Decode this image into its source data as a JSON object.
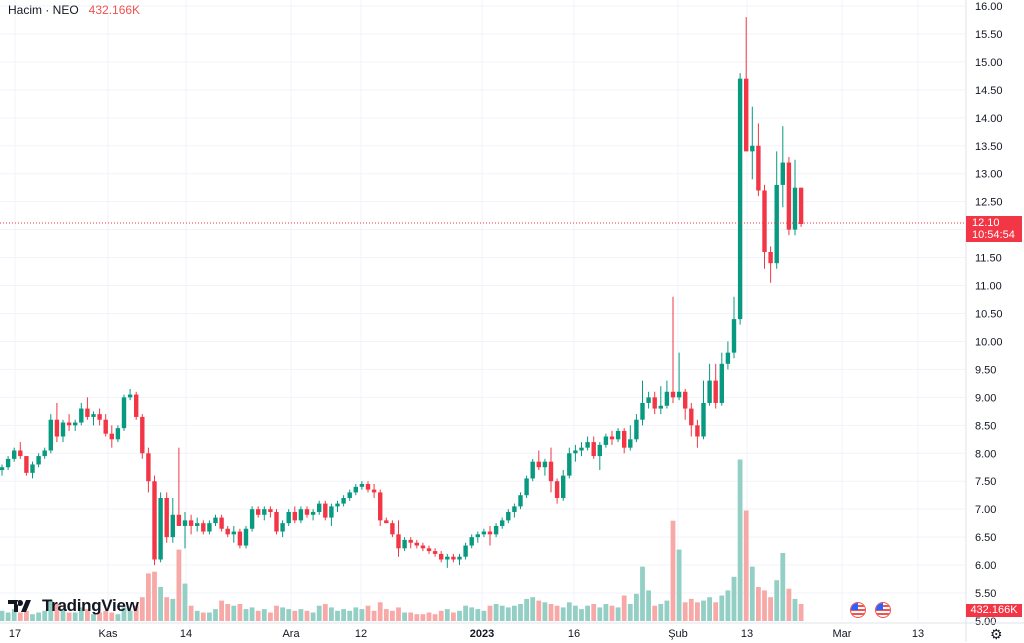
{
  "legend": {
    "symbol": "Hacim · NEO",
    "volume": "432.166K"
  },
  "price_tag": {
    "price": "12.10",
    "countdown": "10:54:54"
  },
  "volume_tag": "432.166K",
  "brand": {
    "name": "TradingView"
  },
  "colors": {
    "up": "#089981",
    "down": "#f23645",
    "up_volume": "#93cfc5",
    "down_volume": "#f7a9a7",
    "grid": "#f0f3fa"
  },
  "chart_data": {
    "type": "candlestick",
    "x_labels": [
      "17",
      "Kas",
      "14",
      "Ara",
      "12",
      "2023",
      "16",
      "Şub",
      "13",
      "Mar",
      "13"
    ],
    "y_ticks": [
      "5.00",
      "5.50",
      "6.00",
      "6.50",
      "7.00",
      "7.50",
      "8.00",
      "8.50",
      "9.00",
      "9.50",
      "10.00",
      "10.50",
      "11.00",
      "11.50",
      "12.00",
      "12.50",
      "13.00",
      "13.50",
      "14.00",
      "14.50",
      "15.00",
      "15.50",
      "16.00"
    ],
    "ylim": [
      5.0,
      16.0
    ],
    "last_price": 12.1,
    "candles": [
      [
        7.7,
        7.8,
        7.6,
        7.75,
        0.06
      ],
      [
        7.75,
        7.95,
        7.7,
        7.9,
        0.05
      ],
      [
        7.9,
        8.1,
        7.85,
        8.05,
        0.07
      ],
      [
        8.05,
        8.2,
        7.9,
        7.95,
        0.05
      ],
      [
        7.95,
        7.95,
        7.6,
        7.65,
        0.06
      ],
      [
        7.65,
        7.85,
        7.55,
        7.8,
        0.04
      ],
      [
        7.8,
        8.0,
        7.75,
        7.95,
        0.05
      ],
      [
        7.95,
        8.1,
        7.9,
        8.05,
        0.06
      ],
      [
        8.05,
        8.7,
        8.0,
        8.6,
        0.12
      ],
      [
        8.6,
        8.9,
        8.2,
        8.3,
        0.1
      ],
      [
        8.3,
        8.6,
        8.2,
        8.55,
        0.07
      ],
      [
        8.55,
        8.7,
        8.4,
        8.5,
        0.05
      ],
      [
        8.5,
        8.6,
        8.4,
        8.55,
        0.05
      ],
      [
        8.55,
        8.9,
        8.5,
        8.8,
        0.08
      ],
      [
        8.8,
        9.0,
        8.6,
        8.65,
        0.07
      ],
      [
        8.65,
        8.75,
        8.5,
        8.7,
        0.04
      ],
      [
        8.7,
        8.8,
        8.5,
        8.6,
        0.05
      ],
      [
        8.6,
        8.7,
        8.3,
        8.35,
        0.06
      ],
      [
        8.35,
        8.5,
        8.1,
        8.25,
        0.05
      ],
      [
        8.25,
        8.5,
        8.2,
        8.45,
        0.04
      ],
      [
        8.45,
        9.05,
        8.4,
        9.0,
        0.08
      ],
      [
        9.0,
        9.15,
        8.95,
        9.05,
        0.06
      ],
      [
        9.05,
        9.1,
        8.6,
        8.65,
        0.09
      ],
      [
        8.65,
        8.7,
        7.9,
        8.0,
        0.14
      ],
      [
        8.0,
        8.1,
        7.3,
        7.5,
        0.28
      ],
      [
        7.5,
        7.6,
        6.0,
        6.1,
        0.29
      ],
      [
        6.1,
        7.3,
        6.05,
        7.2,
        0.2
      ],
      [
        7.2,
        7.3,
        6.4,
        6.5,
        0.14
      ],
      [
        6.5,
        7.2,
        6.4,
        6.9,
        0.13
      ],
      [
        6.9,
        8.1,
        6.7,
        6.7,
        0.42
      ],
      [
        6.7,
        6.95,
        6.3,
        6.8,
        0.22
      ],
      [
        6.8,
        6.9,
        6.55,
        6.7,
        0.09
      ],
      [
        6.7,
        6.85,
        6.6,
        6.75,
        0.06
      ],
      [
        6.75,
        6.8,
        6.55,
        6.6,
        0.05
      ],
      [
        6.6,
        6.8,
        6.55,
        6.75,
        0.05
      ],
      [
        6.75,
        6.9,
        6.7,
        6.85,
        0.07
      ],
      [
        6.85,
        6.9,
        6.6,
        6.65,
        0.12
      ],
      [
        6.65,
        6.7,
        6.5,
        6.55,
        0.1
      ],
      [
        6.55,
        6.7,
        6.4,
        6.6,
        0.09
      ],
      [
        6.6,
        6.65,
        6.3,
        6.35,
        0.1
      ],
      [
        6.35,
        6.7,
        6.3,
        6.65,
        0.07
      ],
      [
        6.65,
        7.05,
        6.6,
        7.0,
        0.08
      ],
      [
        7.0,
        7.05,
        6.85,
        6.9,
        0.06
      ],
      [
        6.9,
        7.05,
        6.8,
        7.0,
        0.07
      ],
      [
        7.0,
        7.05,
        6.85,
        6.95,
        0.05
      ],
      [
        6.95,
        7.0,
        6.55,
        6.6,
        0.09
      ],
      [
        6.6,
        6.8,
        6.5,
        6.75,
        0.08
      ],
      [
        6.75,
        7.0,
        6.7,
        6.95,
        0.07
      ],
      [
        6.95,
        7.05,
        6.75,
        6.8,
        0.06
      ],
      [
        6.8,
        7.05,
        6.75,
        7.0,
        0.07
      ],
      [
        7.0,
        7.05,
        6.85,
        6.9,
        0.06
      ],
      [
        6.9,
        7.0,
        6.8,
        6.95,
        0.05
      ],
      [
        6.95,
        7.15,
        6.9,
        7.1,
        0.09
      ],
      [
        7.1,
        7.15,
        6.8,
        6.85,
        0.1
      ],
      [
        6.85,
        7.1,
        6.7,
        7.05,
        0.08
      ],
      [
        7.05,
        7.15,
        6.95,
        7.1,
        0.06
      ],
      [
        7.1,
        7.25,
        7.05,
        7.2,
        0.07
      ],
      [
        7.2,
        7.35,
        7.15,
        7.3,
        0.06
      ],
      [
        7.3,
        7.45,
        7.25,
        7.4,
        0.08
      ],
      [
        7.4,
        7.5,
        7.35,
        7.45,
        0.07
      ],
      [
        7.45,
        7.5,
        7.3,
        7.35,
        0.09
      ],
      [
        7.35,
        7.45,
        7.2,
        7.3,
        0.06
      ],
      [
        7.3,
        7.35,
        6.7,
        6.8,
        0.11
      ],
      [
        6.8,
        6.85,
        6.75,
        6.75,
        0.07
      ],
      [
        6.75,
        6.8,
        6.5,
        6.55,
        0.06
      ],
      [
        6.55,
        6.8,
        6.15,
        6.3,
        0.08
      ],
      [
        6.3,
        6.5,
        6.25,
        6.45,
        0.05
      ],
      [
        6.45,
        6.5,
        6.3,
        6.4,
        0.05
      ],
      [
        6.4,
        6.45,
        6.3,
        6.35,
        0.04
      ],
      [
        6.35,
        6.4,
        6.25,
        6.3,
        0.04
      ],
      [
        6.3,
        6.35,
        6.2,
        6.25,
        0.05
      ],
      [
        6.25,
        6.3,
        6.15,
        6.2,
        0.04
      ],
      [
        6.2,
        6.25,
        6.05,
        6.1,
        0.06
      ],
      [
        6.1,
        6.2,
        5.95,
        6.15,
        0.07
      ],
      [
        6.15,
        6.2,
        6.05,
        6.1,
        0.05
      ],
      [
        6.1,
        6.2,
        6.0,
        6.15,
        0.06
      ],
      [
        6.15,
        6.4,
        6.1,
        6.35,
        0.09
      ],
      [
        6.35,
        6.55,
        6.3,
        6.5,
        0.08
      ],
      [
        6.5,
        6.6,
        6.4,
        6.55,
        0.07
      ],
      [
        6.55,
        6.65,
        6.5,
        6.6,
        0.06
      ],
      [
        6.6,
        6.7,
        6.35,
        6.55,
        0.09
      ],
      [
        6.55,
        6.75,
        6.5,
        6.7,
        0.1
      ],
      [
        6.7,
        6.85,
        6.65,
        6.8,
        0.09
      ],
      [
        6.8,
        7.0,
        6.75,
        6.95,
        0.08
      ],
      [
        6.95,
        7.1,
        6.85,
        7.05,
        0.09
      ],
      [
        7.05,
        7.3,
        7.0,
        7.25,
        0.1
      ],
      [
        7.25,
        7.6,
        7.2,
        7.55,
        0.13
      ],
      [
        7.55,
        7.9,
        7.5,
        7.85,
        0.14
      ],
      [
        7.85,
        8.05,
        7.7,
        7.75,
        0.12
      ],
      [
        7.75,
        7.9,
        7.6,
        7.85,
        0.11
      ],
      [
        7.85,
        8.1,
        7.3,
        7.5,
        0.1
      ],
      [
        7.5,
        7.55,
        7.1,
        7.2,
        0.09
      ],
      [
        7.2,
        7.7,
        7.15,
        7.6,
        0.08
      ],
      [
        7.6,
        8.1,
        7.55,
        8.0,
        0.11
      ],
      [
        8.0,
        8.15,
        7.85,
        8.05,
        0.09
      ],
      [
        8.05,
        8.2,
        7.95,
        8.1,
        0.07
      ],
      [
        8.1,
        8.3,
        8.05,
        8.2,
        0.09
      ],
      [
        8.2,
        8.3,
        7.9,
        7.95,
        0.1
      ],
      [
        7.95,
        8.2,
        7.7,
        8.15,
        0.08
      ],
      [
        8.15,
        8.35,
        8.1,
        8.3,
        0.1
      ],
      [
        8.3,
        8.4,
        8.15,
        8.25,
        0.09
      ],
      [
        8.25,
        8.45,
        8.2,
        8.4,
        0.08
      ],
      [
        8.4,
        8.45,
        8.0,
        8.1,
        0.15
      ],
      [
        8.1,
        8.5,
        8.05,
        8.25,
        0.1
      ],
      [
        8.25,
        8.7,
        8.2,
        8.6,
        0.16
      ],
      [
        8.6,
        9.3,
        8.5,
        8.9,
        0.32
      ],
      [
        8.9,
        9.1,
        8.8,
        9.0,
        0.18
      ],
      [
        9.0,
        9.1,
        8.7,
        8.8,
        0.09
      ],
      [
        8.8,
        9.2,
        8.7,
        8.85,
        0.1
      ],
      [
        8.85,
        9.3,
        8.8,
        9.1,
        0.12
      ],
      [
        9.1,
        10.8,
        8.9,
        9.0,
        0.59
      ],
      [
        9.0,
        9.8,
        8.95,
        9.1,
        0.42
      ],
      [
        9.1,
        9.15,
        8.6,
        8.8,
        0.11
      ],
      [
        8.8,
        8.9,
        8.3,
        8.5,
        0.13
      ],
      [
        8.5,
        8.6,
        8.1,
        8.3,
        0.11
      ],
      [
        8.3,
        9.3,
        8.25,
        8.9,
        0.12
      ],
      [
        8.9,
        9.6,
        8.85,
        9.3,
        0.14
      ],
      [
        9.3,
        9.6,
        8.8,
        8.9,
        0.11
      ],
      [
        8.9,
        9.8,
        8.85,
        9.6,
        0.15
      ],
      [
        9.6,
        10.0,
        9.5,
        9.8,
        0.18
      ],
      [
        9.8,
        10.8,
        9.7,
        10.4,
        0.26
      ],
      [
        10.4,
        14.8,
        10.3,
        14.7,
        0.95
      ],
      [
        14.7,
        15.8,
        13.4,
        13.4,
        0.65
      ],
      [
        13.4,
        14.2,
        12.9,
        13.5,
        0.32
      ],
      [
        13.5,
        13.9,
        12.6,
        12.7,
        0.2
      ],
      [
        12.7,
        12.8,
        11.3,
        11.6,
        0.18
      ],
      [
        11.6,
        11.7,
        11.05,
        11.4,
        0.14
      ],
      [
        11.4,
        13.4,
        11.3,
        12.8,
        0.24
      ],
      [
        12.8,
        13.85,
        12.4,
        13.2,
        0.4
      ],
      [
        13.2,
        13.3,
        11.9,
        12.0,
        0.19
      ],
      [
        12.0,
        13.25,
        11.9,
        12.75,
        0.13
      ],
      [
        12.75,
        12.75,
        12.05,
        12.1,
        0.1
      ]
    ]
  }
}
